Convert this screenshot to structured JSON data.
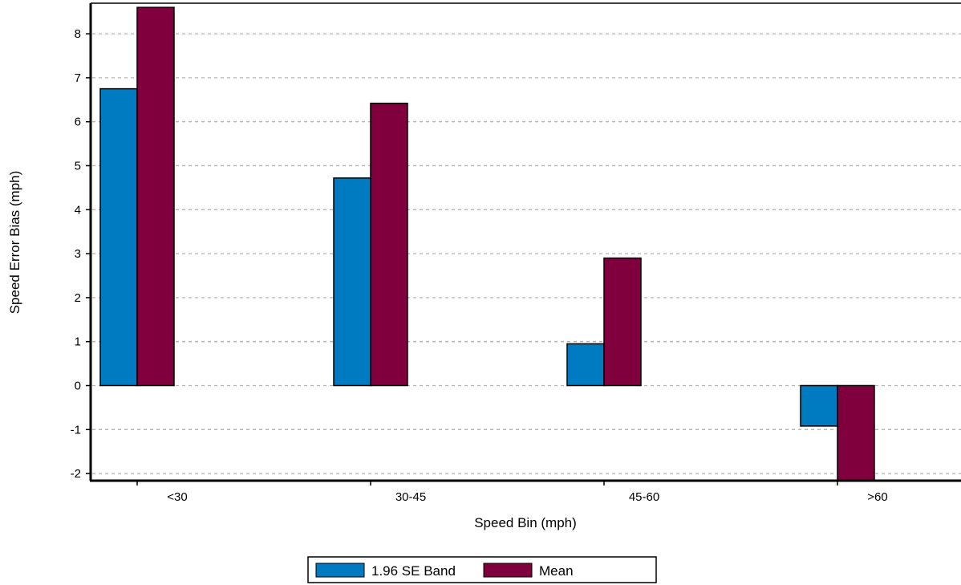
{
  "chart_data": {
    "type": "bar",
    "title": "",
    "xlabel": "Speed Bin (mph)",
    "ylabel": "Speed Error Bias (mph)",
    "categories": [
      "<30",
      "30-45",
      "45-60",
      ">60"
    ],
    "series": [
      {
        "name": "1.96 SE Band",
        "color": "#007ac0",
        "values": [
          6.75,
          4.72,
          0.95,
          -0.92
        ]
      },
      {
        "name": "Mean",
        "color": "#7f003c",
        "values": [
          8.6,
          6.42,
          2.9,
          -2.15
        ]
      }
    ],
    "ylim": [
      -2.15,
      8.6
    ],
    "yticks": [
      "-2",
      "-1",
      "0",
      "1",
      "2",
      "3",
      "4",
      "5",
      "6",
      "7",
      "8"
    ],
    "grid": true,
    "legend_position": "bottom-center"
  }
}
